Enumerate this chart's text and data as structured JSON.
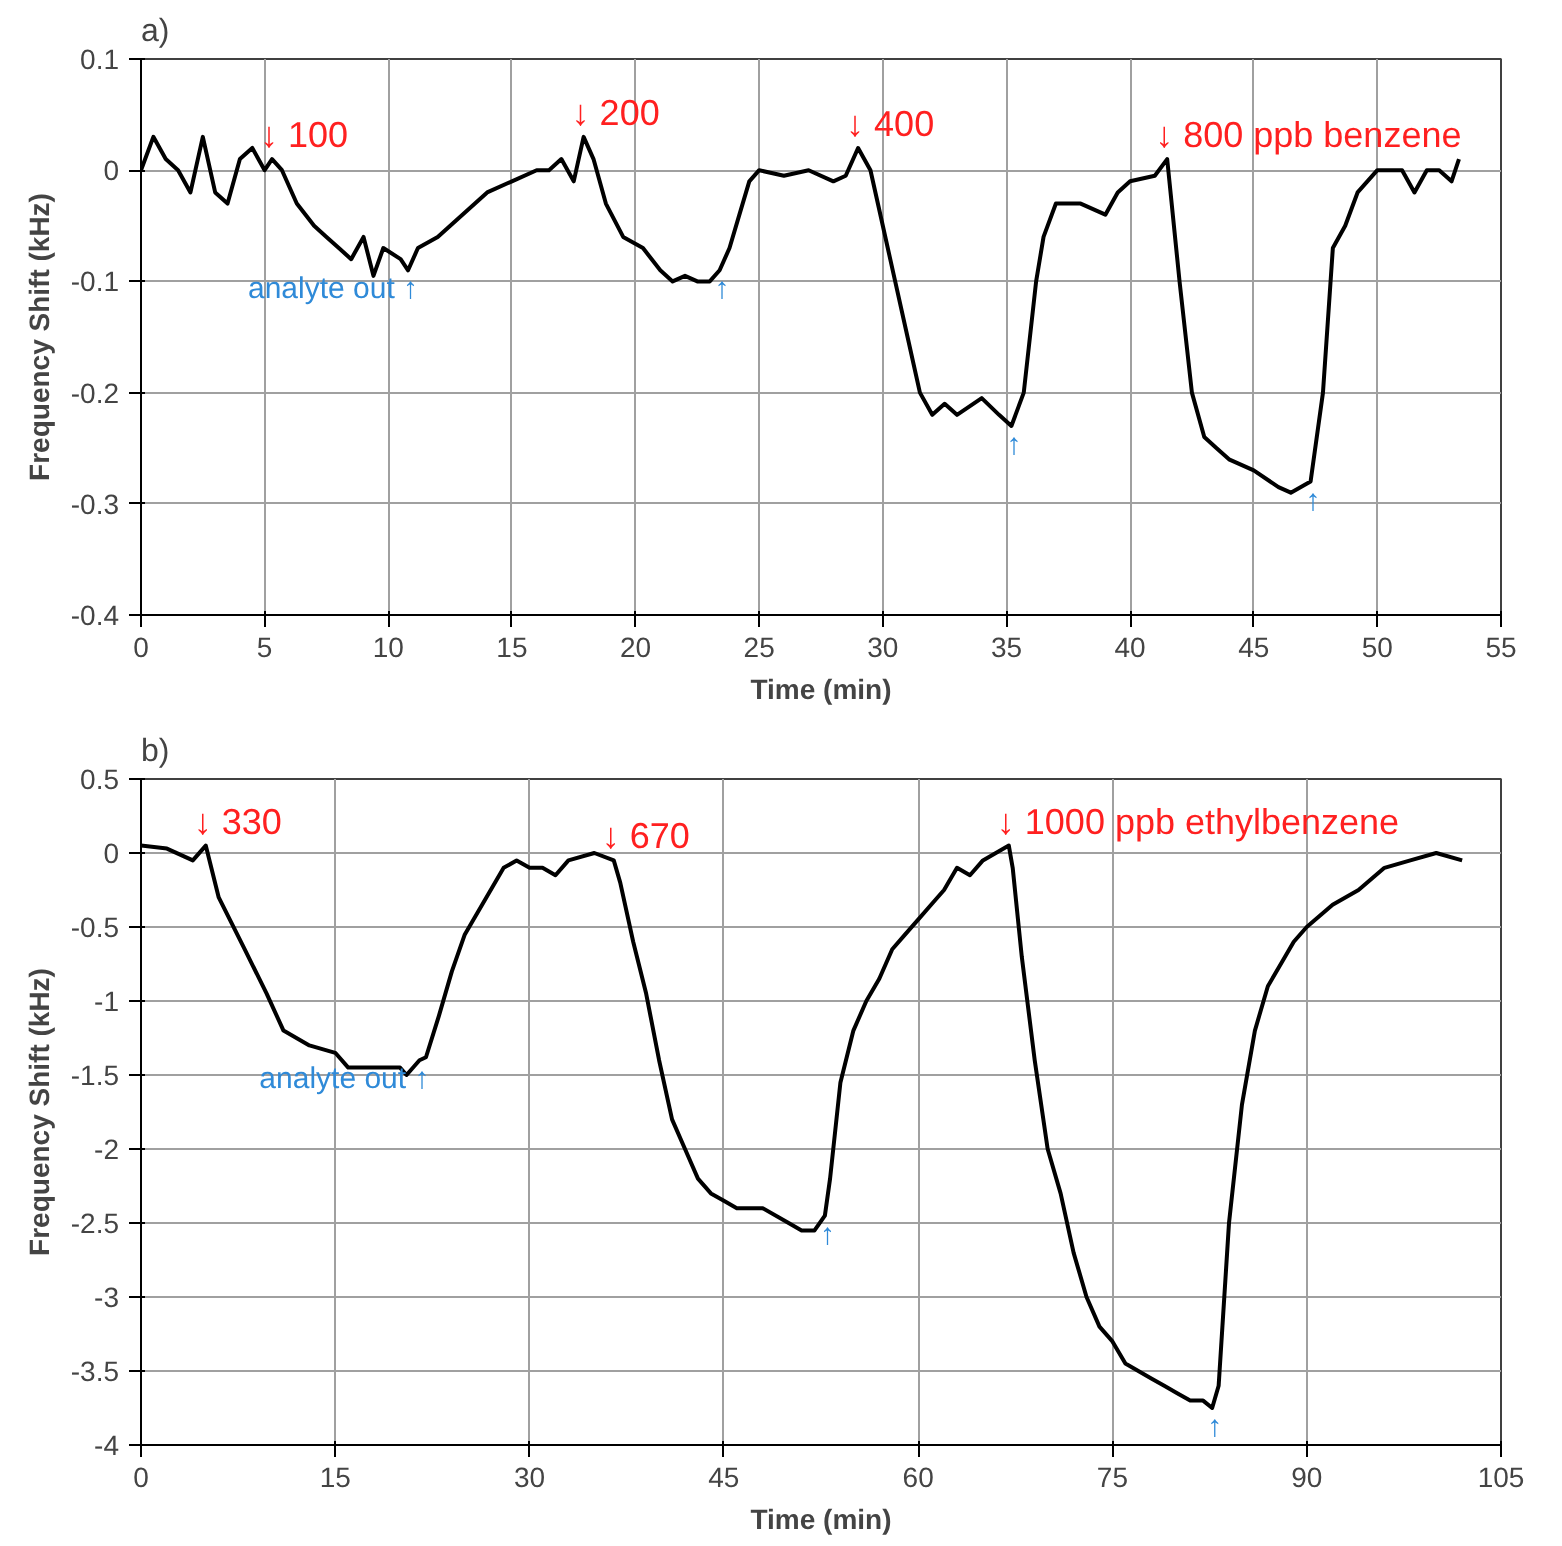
{
  "chart_data": [
    {
      "type": "line",
      "title": "a)",
      "xlabel": "Time (min)",
      "ylabel": "Frequency Shift (kHz)",
      "xlim": [
        0,
        55
      ],
      "ylim": [
        -0.4,
        0.1
      ],
      "xticks": [
        0,
        5,
        10,
        15,
        20,
        25,
        30,
        35,
        40,
        45,
        50,
        55
      ],
      "yticks": [
        -0.4,
        -0.3,
        -0.2,
        -0.1,
        0,
        0.1
      ],
      "grid": true,
      "x": [
        0,
        0.5,
        1,
        1.5,
        2,
        2.5,
        3,
        3.5,
        4,
        4.5,
        5,
        5.3,
        5.7,
        6.3,
        7,
        7.5,
        8,
        8.5,
        9,
        9.4,
        9.8,
        10.5,
        10.8,
        11.2,
        12,
        13,
        14,
        15,
        16,
        16.5,
        17,
        17.5,
        17.9,
        18.3,
        18.8,
        19.5,
        20.3,
        21,
        21.5,
        22,
        22.5,
        23,
        23.4,
        23.8,
        24.2,
        24.6,
        25,
        26,
        27,
        28,
        28.5,
        29,
        29.5,
        30,
        30.5,
        31,
        31.5,
        32,
        32.5,
        33,
        34,
        34.7,
        35.2,
        35.7,
        36.2,
        36.5,
        37,
        38,
        39,
        39.5,
        40,
        41,
        41.5,
        42,
        42.5,
        43,
        43.5,
        44,
        45,
        46,
        46.5,
        47.3,
        47.8,
        48.2,
        48.7,
        49.2,
        50,
        51,
        51.5,
        52,
        52.5,
        53,
        53.3
      ],
      "series": [
        {
          "color": "#000000",
          "values": [
            0.0,
            0.03,
            0.01,
            0.0,
            -0.02,
            0.03,
            -0.02,
            -0.03,
            0.01,
            0.02,
            0.0,
            0.01,
            0.0,
            -0.03,
            -0.05,
            -0.06,
            -0.07,
            -0.08,
            -0.06,
            -0.095,
            -0.07,
            -0.08,
            -0.09,
            -0.07,
            -0.06,
            -0.04,
            -0.02,
            -0.01,
            0.0,
            0.0,
            0.01,
            -0.01,
            0.03,
            0.01,
            -0.03,
            -0.06,
            -0.07,
            -0.09,
            -0.1,
            -0.095,
            -0.1,
            -0.1,
            -0.09,
            -0.07,
            -0.04,
            -0.01,
            0.0,
            -0.005,
            0.0,
            -0.01,
            -0.005,
            0.02,
            0.0,
            -0.05,
            -0.1,
            -0.15,
            -0.2,
            -0.22,
            -0.21,
            -0.22,
            -0.205,
            -0.22,
            -0.23,
            -0.2,
            -0.1,
            -0.06,
            -0.03,
            -0.03,
            -0.04,
            -0.02,
            -0.01,
            -0.005,
            0.01,
            -0.1,
            -0.2,
            -0.24,
            -0.25,
            -0.26,
            -0.27,
            -0.285,
            -0.29,
            -0.28,
            -0.2,
            -0.07,
            -0.05,
            -0.02,
            0.0,
            0.0,
            -0.02,
            0.0,
            0.0,
            -0.01,
            0.01
          ]
        }
      ],
      "annotations": [
        {
          "text": "↓ 100",
          "x": 5.3,
          "y": 0.01
        },
        {
          "text": "↓ 200",
          "x": 17.9,
          "y": 0.03
        },
        {
          "text": "↓ 400",
          "x": 29,
          "y": 0.02
        },
        {
          "text": "↓ 800 ppb benzene",
          "x": 41.5,
          "y": 0.01
        },
        {
          "text": "analyte out ↑",
          "x": 10.8,
          "y": -0.09
        },
        {
          "text": "↑",
          "x": 23.4,
          "y": -0.09
        },
        {
          "text": "↑",
          "x": 35.2,
          "y": -0.23
        },
        {
          "text": "↑",
          "x": 47.3,
          "y": -0.28
        }
      ]
    },
    {
      "type": "line",
      "title": "b)",
      "xlabel": "Time (min)",
      "ylabel": "Frequency Shift (kHz)",
      "xlim": [
        0,
        105
      ],
      "ylim": [
        -4,
        0.5
      ],
      "xticks": [
        0,
        15,
        30,
        45,
        60,
        75,
        90,
        105
      ],
      "yticks": [
        -4,
        -3.5,
        -3,
        -2.5,
        -2,
        -1.5,
        -1,
        -0.5,
        0,
        0.5
      ],
      "grid": true,
      "x": [
        0,
        2,
        4,
        5,
        6,
        8,
        9.7,
        11,
        13,
        15,
        16,
        18,
        20,
        20.5,
        21.5,
        22,
        23,
        24,
        25,
        26,
        27,
        28,
        29,
        30,
        31,
        32,
        33,
        35,
        36.5,
        37,
        38,
        39,
        40,
        41,
        42,
        43,
        44,
        45,
        46,
        48,
        50,
        51,
        52,
        52.8,
        53.2,
        54,
        55,
        56,
        57,
        58,
        59,
        60,
        61,
        62,
        63,
        64,
        65,
        66,
        67,
        67.3,
        68,
        69,
        70,
        71,
        72,
        73,
        74,
        75,
        76,
        77,
        78,
        79,
        80,
        81,
        82,
        82.7,
        83.2,
        84,
        85,
        86,
        87,
        88,
        89,
        90,
        92,
        94,
        96,
        98,
        100,
        102
      ],
      "series": [
        {
          "color": "#000000",
          "values": [
            0.05,
            0.03,
            -0.05,
            0.05,
            -0.3,
            -0.65,
            -0.95,
            -1.2,
            -1.3,
            -1.35,
            -1.45,
            -1.45,
            -1.45,
            -1.5,
            -1.4,
            -1.38,
            -1.1,
            -0.8,
            -0.55,
            -0.4,
            -0.25,
            -0.1,
            -0.05,
            -0.1,
            -0.1,
            -0.15,
            -0.05,
            0.0,
            -0.05,
            -0.2,
            -0.6,
            -0.95,
            -1.4,
            -1.8,
            -2.0,
            -2.2,
            -2.3,
            -2.35,
            -2.4,
            -2.4,
            -2.5,
            -2.55,
            -2.55,
            -2.45,
            -2.2,
            -1.55,
            -1.2,
            -1.0,
            -0.85,
            -0.65,
            -0.55,
            -0.45,
            -0.35,
            -0.25,
            -0.1,
            -0.15,
            -0.05,
            0.0,
            0.05,
            -0.1,
            -0.7,
            -1.4,
            -2.0,
            -2.3,
            -2.7,
            -3.0,
            -3.2,
            -3.3,
            -3.45,
            -3.5,
            -3.55,
            -3.6,
            -3.65,
            -3.7,
            -3.7,
            -3.75,
            -3.6,
            -2.5,
            -1.7,
            -1.2,
            -0.9,
            -0.75,
            -0.6,
            -0.5,
            -0.35,
            -0.25,
            -0.1,
            -0.05,
            0.0,
            -0.05
          ]
        }
      ],
      "annotations": [
        {
          "text": "↓ 330",
          "x": 5,
          "y": 0.05
        },
        {
          "text": "↓ 670",
          "x": 36.5,
          "y": -0.05
        },
        {
          "text": "↓ 1000 ppb ethylbenzene",
          "x": 67,
          "y": 0.05
        },
        {
          "text": "analyte out ↑",
          "x": 21.5,
          "y": -1.4
        },
        {
          "text": "↑",
          "x": 52.8,
          "y": -2.45
        },
        {
          "text": "↑",
          "x": 82.7,
          "y": -3.75
        }
      ]
    }
  ]
}
